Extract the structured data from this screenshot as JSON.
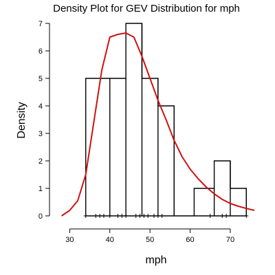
{
  "chart_data": {
    "type": "histogram-density",
    "title": "Density Plot for GEV Distribution for mph",
    "xlabel": "mph",
    "ylabel": "Density",
    "xlim": [
      26,
      76
    ],
    "ylim": [
      -0.15,
      7.2
    ],
    "x_ticks": [
      30,
      40,
      50,
      60,
      70
    ],
    "y_ticks": [
      0,
      1,
      2,
      3,
      4,
      5,
      6,
      7
    ],
    "histogram": {
      "color": "#000000",
      "bins": [
        {
          "x0": 34,
          "x1": 40,
          "value": 5
        },
        {
          "x0": 40,
          "x1": 44,
          "value": 5
        },
        {
          "x0": 44,
          "x1": 48,
          "value": 7
        },
        {
          "x0": 48,
          "x1": 52,
          "value": 5
        },
        {
          "x0": 52,
          "x1": 56,
          "value": 4
        },
        {
          "x0": 56,
          "x1": 61,
          "value": 0
        },
        {
          "x0": 61,
          "x1": 66,
          "value": 1
        },
        {
          "x0": 66,
          "x1": 70,
          "value": 2
        },
        {
          "x0": 70,
          "x1": 74,
          "value": 1
        }
      ]
    },
    "density_curve": {
      "color": "#d01010",
      "points": [
        [
          28,
          0.0
        ],
        [
          30,
          0.2
        ],
        [
          32,
          0.55
        ],
        [
          34,
          1.5
        ],
        [
          36,
          3.4
        ],
        [
          38,
          5.3
        ],
        [
          40,
          6.5
        ],
        [
          42,
          6.6
        ],
        [
          44,
          6.65
        ],
        [
          46,
          6.5
        ],
        [
          48,
          5.8
        ],
        [
          50,
          5.0
        ],
        [
          52,
          4.2
        ],
        [
          54,
          3.5
        ],
        [
          56,
          2.75
        ],
        [
          58,
          2.15
        ],
        [
          60,
          1.7
        ],
        [
          62,
          1.35
        ],
        [
          64,
          1.05
        ],
        [
          66,
          0.8
        ],
        [
          68,
          0.6
        ],
        [
          70,
          0.45
        ],
        [
          72,
          0.35
        ],
        [
          74,
          0.27
        ],
        [
          76,
          0.2
        ]
      ]
    },
    "rug": {
      "marker": "+",
      "values": [
        34,
        36.5,
        37.5,
        38.5,
        40,
        42,
        43,
        44,
        46.5,
        47.5,
        48.5,
        49.5,
        51,
        52,
        53,
        65,
        68,
        69,
        74
      ]
    }
  }
}
